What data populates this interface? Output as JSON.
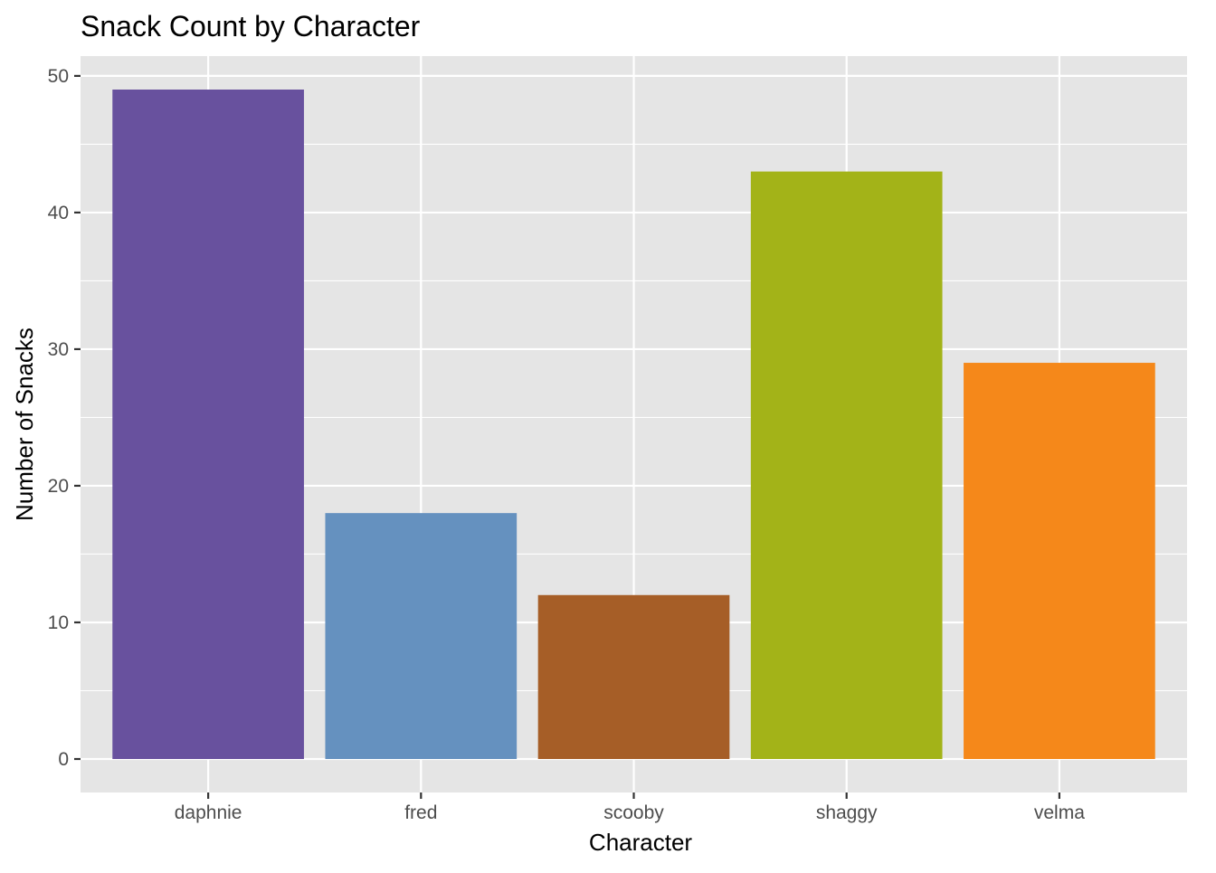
{
  "chart_data": {
    "type": "bar",
    "title": "Snack Count by Character",
    "xlabel": "Character",
    "ylabel": "Number of Snacks",
    "categories": [
      "daphnie",
      "fred",
      "scooby",
      "shaggy",
      "velma"
    ],
    "values": [
      49,
      18,
      12,
      43,
      29
    ],
    "colors": [
      "#68519E",
      "#6591BF",
      "#A65E27",
      "#A3B318",
      "#F5881A"
    ],
    "ylim": [
      -2.45,
      51.45
    ],
    "yticks": [
      0,
      10,
      20,
      30,
      40,
      50
    ],
    "yticks_minor": [
      5,
      15,
      25,
      35,
      45
    ],
    "grid": true,
    "legend": "none",
    "panel_background": "#E5E5E5",
    "grid_color": "#FFFFFF"
  }
}
